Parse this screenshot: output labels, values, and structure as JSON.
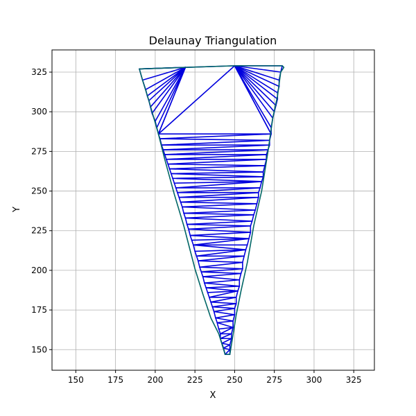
{
  "chart_data": {
    "type": "scatter",
    "title": "Delaunay Triangulation",
    "xlabel": "X",
    "ylabel": "Y",
    "xlim": [
      135,
      338
    ],
    "ylim": [
      137,
      339
    ],
    "xticks": [
      150,
      175,
      200,
      225,
      250,
      275,
      300,
      325
    ],
    "yticks": [
      150,
      175,
      200,
      225,
      250,
      275,
      300,
      325
    ],
    "grid": true,
    "hull": [
      [
        190,
        327
      ],
      [
        219,
        328
      ],
      [
        250,
        329
      ],
      [
        280,
        329
      ],
      [
        281,
        328
      ],
      [
        279,
        325
      ],
      [
        277,
        310
      ],
      [
        274,
        296
      ],
      [
        271,
        275
      ],
      [
        267,
        250
      ],
      [
        262,
        228
      ],
      [
        258,
        205
      ],
      [
        254,
        187
      ],
      [
        251,
        172
      ],
      [
        247,
        147
      ],
      [
        244,
        147
      ],
      [
        240,
        160
      ],
      [
        235,
        170
      ],
      [
        230,
        185
      ],
      [
        225,
        201
      ],
      [
        218,
        228
      ],
      [
        212,
        248
      ],
      [
        206,
        270
      ],
      [
        202,
        286
      ],
      [
        196,
        307
      ],
      [
        192,
        320
      ]
    ],
    "left_chain": [
      [
        202,
        286
      ],
      [
        203,
        283
      ],
      [
        204,
        279
      ],
      [
        205,
        276
      ],
      [
        206,
        273
      ],
      [
        207,
        270
      ],
      [
        208,
        267
      ],
      [
        209,
        264
      ],
      [
        210,
        261
      ],
      [
        211,
        258
      ],
      [
        212,
        255
      ],
      [
        213,
        252
      ],
      [
        214,
        249
      ],
      [
        215,
        246
      ],
      [
        216,
        243
      ],
      [
        217,
        240
      ],
      [
        218,
        236
      ],
      [
        219,
        233
      ],
      [
        220,
        229
      ],
      [
        221,
        226
      ],
      [
        222,
        222
      ],
      [
        223,
        219
      ],
      [
        224,
        216
      ],
      [
        225,
        212
      ],
      [
        226,
        209
      ],
      [
        227,
        206
      ],
      [
        228,
        202
      ],
      [
        229,
        199
      ],
      [
        230,
        196
      ],
      [
        231,
        192
      ],
      [
        232,
        189
      ],
      [
        233,
        186
      ],
      [
        234,
        183
      ],
      [
        235,
        180
      ],
      [
        236,
        177
      ],
      [
        237,
        174
      ],
      [
        238,
        170
      ],
      [
        239,
        167
      ],
      [
        240,
        163
      ],
      [
        241,
        160
      ],
      [
        241,
        157
      ],
      [
        242,
        154
      ],
      [
        243,
        151
      ],
      [
        244,
        147
      ]
    ],
    "right_chain": [
      [
        273,
        286
      ],
      [
        272,
        282
      ],
      [
        272,
        279
      ],
      [
        271,
        276
      ],
      [
        270,
        273
      ],
      [
        270,
        270
      ],
      [
        269,
        266
      ],
      [
        268,
        262
      ],
      [
        268,
        259
      ],
      [
        267,
        256
      ],
      [
        266,
        252
      ],
      [
        265,
        249
      ],
      [
        265,
        246
      ],
      [
        264,
        242
      ],
      [
        263,
        238
      ],
      [
        262,
        235
      ],
      [
        261,
        231
      ],
      [
        260,
        228
      ],
      [
        260,
        224
      ],
      [
        259,
        220
      ],
      [
        258,
        216
      ],
      [
        257,
        213
      ],
      [
        256,
        209
      ],
      [
        255,
        205
      ],
      [
        255,
        201
      ],
      [
        254,
        198
      ],
      [
        253,
        194
      ],
      [
        253,
        190
      ],
      [
        252,
        187
      ],
      [
        251,
        183
      ],
      [
        251,
        179
      ],
      [
        250,
        176
      ],
      [
        250,
        172
      ],
      [
        249,
        168
      ],
      [
        249,
        164
      ],
      [
        248,
        160
      ],
      [
        248,
        157
      ],
      [
        247,
        153
      ],
      [
        247,
        150
      ],
      [
        247,
        147
      ]
    ],
    "top_fan_vertices": [
      [
        219,
        328
      ],
      [
        250,
        329
      ]
    ],
    "top_left_chain": [
      [
        190,
        327
      ],
      [
        192,
        320
      ],
      [
        194,
        314
      ],
      [
        195,
        310
      ],
      [
        196,
        307
      ],
      [
        197,
        303
      ],
      [
        198,
        299
      ],
      [
        200,
        294
      ],
      [
        201,
        290
      ],
      [
        202,
        286
      ]
    ],
    "top_right_chain": [
      [
        280,
        329
      ],
      [
        279,
        325
      ],
      [
        278,
        320
      ],
      [
        278,
        316
      ],
      [
        277,
        312
      ],
      [
        277,
        308
      ],
      [
        276,
        304
      ],
      [
        275,
        300
      ],
      [
        274,
        296
      ],
      [
        273,
        290
      ],
      [
        273,
        286
      ]
    ]
  },
  "colors": {
    "edge": "#0000dd",
    "hull": "#006666",
    "grid": "#b0b0b0",
    "frame": "#000000"
  }
}
